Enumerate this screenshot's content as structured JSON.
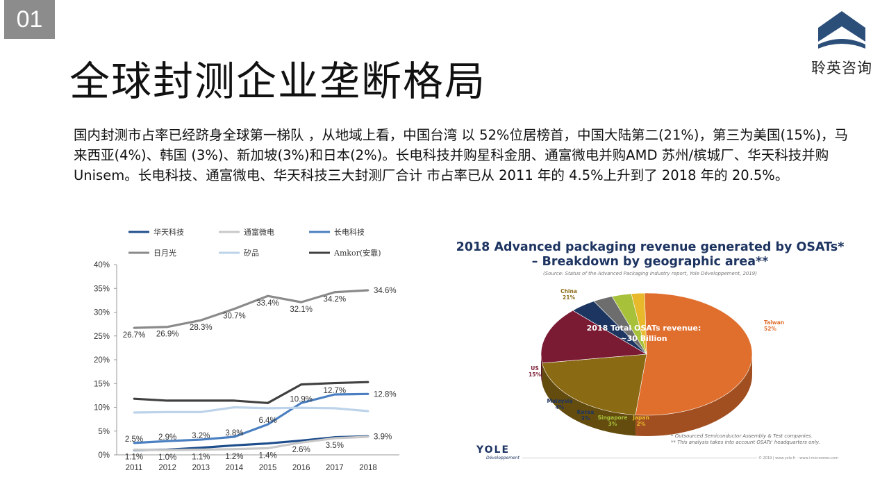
{
  "slide": {
    "number": "01",
    "title": "全球封测企业垄断格局",
    "logo_text": "聆英咨询",
    "paragraph": "国内封测市占率已经跻身全球第一梯队 ，从地域上看，中国台湾 以 52%位居榜首，中国大陆第二(21%)，第三为美国(15%)，马来西亚(4%)、韩国 (3%)、新加坡(3%)和日本(2%)。长电科技并购星科金朋、通富微电并购AMD 苏州/槟城厂、华天科技并购 Unisem。长电科技、通富微电、华天科技三大封测厂合计 市占率已从 2011 年的 4.5%上升到了 2018 年的 20.5%。"
  },
  "colors": {
    "logo_blue": "#2c4f7a",
    "huatian": "#1f4e8c",
    "tongfu": "#c8c8c8",
    "changdian": "#4a7fc1",
    "riyueguang": "#8a8a8a",
    "kuipin": "#bcd3ea",
    "amkor": "#404040"
  },
  "chart_data": [
    {
      "type": "line",
      "title": "",
      "xlabel": "",
      "ylabel": "",
      "x": [
        "2011",
        "2012",
        "2013",
        "2014",
        "2015",
        "2016",
        "2017",
        "2018"
      ],
      "ylim": [
        0,
        40
      ],
      "yticks": [
        "0%",
        "5%",
        "10%",
        "15%",
        "20%",
        "25%",
        "30%",
        "35%",
        "40%"
      ],
      "legend_position": "top",
      "series": [
        {
          "name": "华天科技",
          "color": "#1f4e8c",
          "values": [
            1.0,
            1.1,
            1.5,
            2.0,
            2.4,
            3.0,
            3.7,
            3.9
          ],
          "labels": [
            "",
            "",
            "",
            "",
            "",
            "",
            "",
            "3.9%"
          ]
        },
        {
          "name": "通富微电",
          "color": "#c8c8c8",
          "values": [
            1.1,
            1.0,
            1.1,
            1.2,
            1.4,
            2.6,
            3.5,
            3.8
          ],
          "labels": [
            "1.1%",
            "1.0%",
            "1.1%",
            "1.2%",
            "1.4%",
            "2.6%",
            "3.5%",
            ""
          ]
        },
        {
          "name": "长电科技",
          "color": "#4a7fc1",
          "values": [
            2.5,
            2.9,
            3.2,
            3.8,
            6.4,
            10.9,
            12.7,
            12.8
          ],
          "labels": [
            "2.5%",
            "2.9%",
            "3.2%",
            "3.8%",
            "6.4%",
            "10.9%",
            "12.7%",
            "12.8%"
          ]
        },
        {
          "name": "日月光",
          "color": "#8a8a8a",
          "values": [
            26.7,
            26.9,
            28.3,
            30.7,
            33.4,
            32.1,
            34.2,
            34.6
          ],
          "labels": [
            "26.7%",
            "26.9%",
            "28.3%",
            "30.7%",
            "33.4%",
            "32.1%",
            "34.2%",
            "34.6%"
          ]
        },
        {
          "name": "矽品",
          "color": "#bcd3ea",
          "values": [
            8.9,
            9.0,
            9.0,
            10.0,
            9.8,
            9.9,
            9.8,
            9.2
          ],
          "labels": [
            "",
            "",
            "",
            "",
            "",
            "",
            "",
            ""
          ]
        },
        {
          "name": "Amkor(安靠)",
          "color": "#404040",
          "values": [
            11.8,
            11.4,
            11.4,
            11.4,
            10.9,
            14.8,
            15.1,
            15.3
          ],
          "labels": [
            "",
            "",
            "",
            "",
            "",
            "",
            "",
            ""
          ]
        }
      ]
    },
    {
      "type": "pie",
      "title": "2018 Advanced packaging revenue generated by OSATs* – Breakdown by geographic area**",
      "subtitle": "(Source: Status of the Advanced Packaging Industry report, Yole Développement, 2019)",
      "center_label_1": "2018 Total OSATs revenue:",
      "center_label_2": "~30 Billion",
      "slices": [
        {
          "name": "Taiwan",
          "value": 52,
          "label": "52%",
          "color": "#e06e2c"
        },
        {
          "name": "China",
          "value": 21,
          "label": "21%",
          "color": "#8b6a14"
        },
        {
          "name": "US",
          "value": 15,
          "label": "15%",
          "color": "#7a1a33"
        },
        {
          "name": "Malaysia",
          "value": 4,
          "label": "4%",
          "color": "#1c3561"
        },
        {
          "name": "Korea",
          "value": 3,
          "label": "3%",
          "color": "#6d6d6d"
        },
        {
          "name": "Singapore",
          "value": 3,
          "label": "3%",
          "color": "#a7c13a"
        },
        {
          "name": "Japan",
          "value": 2,
          "label": "2%",
          "color": "#e8b92a"
        }
      ],
      "footnote_1": "* Outsourced Semiconductor Assembly & Test companies.",
      "footnote_2": "** This analysis takes into account OSATs' headquarters only.",
      "brand": "YOLE",
      "brand_sub": "Développement",
      "copyright": "© 2019 | www.yole.fr – www.i-micronews.com"
    }
  ]
}
